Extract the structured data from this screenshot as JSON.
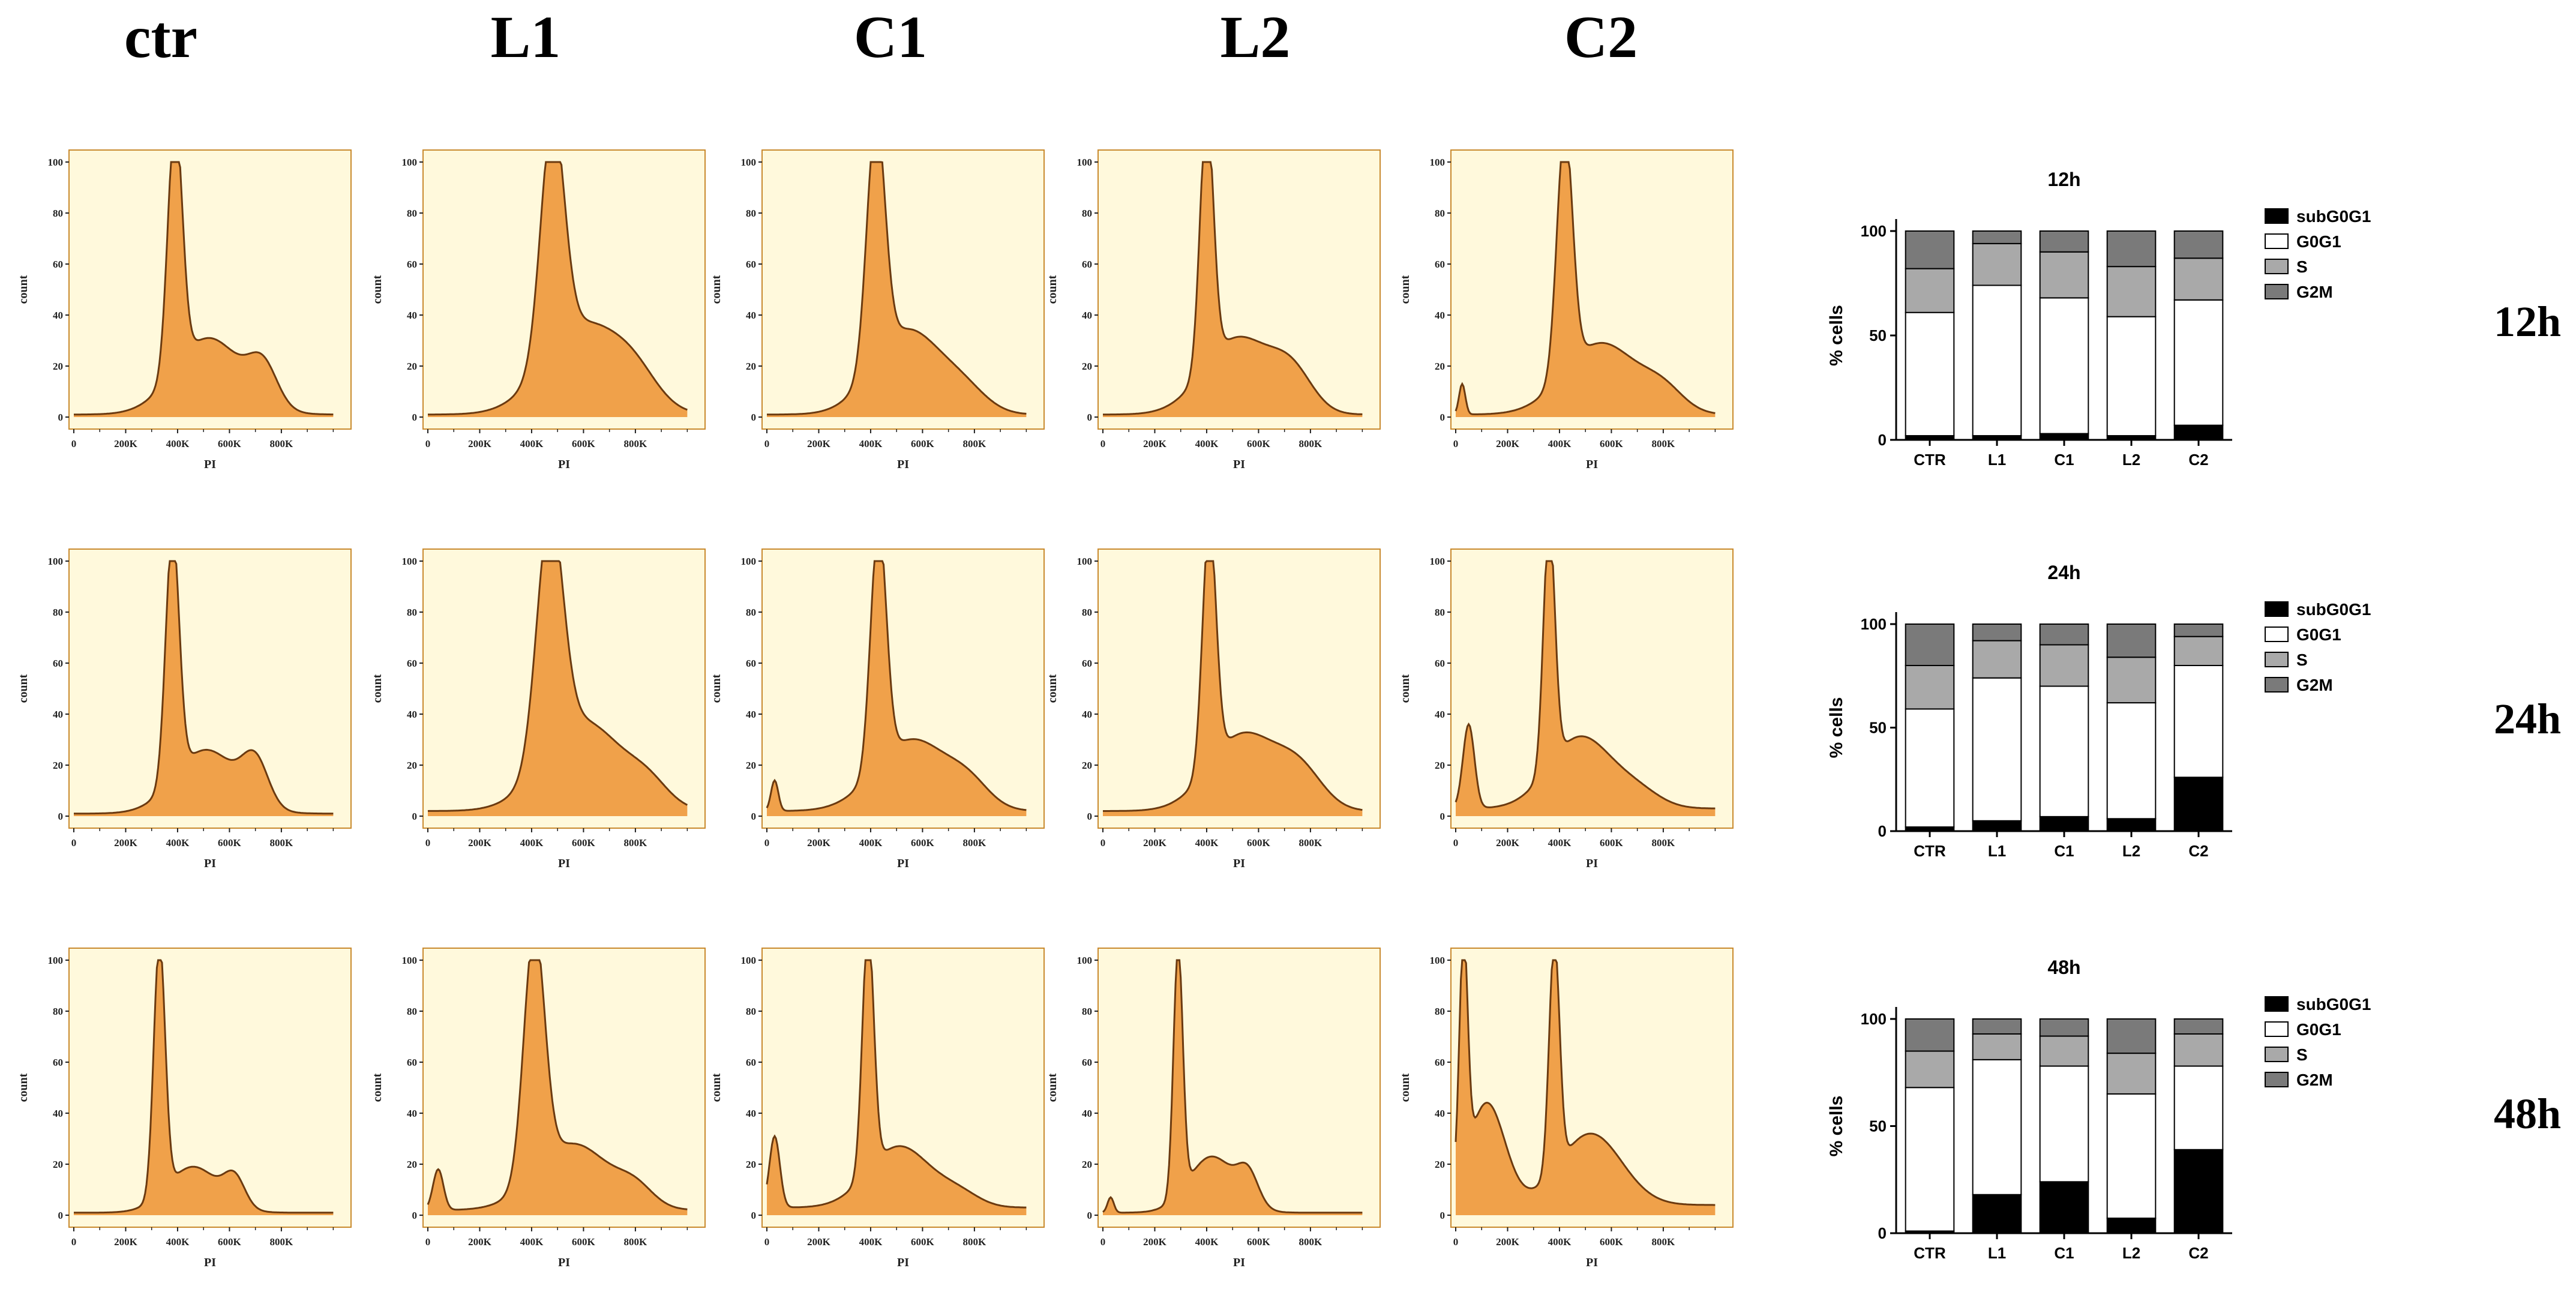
{
  "colors": {
    "panel_bg": "#fff9dc",
    "panel_border": "#c98a2e",
    "hist_fill": "#f0a14a",
    "hist_line": "#6b3a10",
    "subG0G1": "#000000",
    "G0G1": "#ffffff",
    "S": "#a9a9a9",
    "G2M": "#7a7a7a"
  },
  "columns": [
    "ctr",
    "L1",
    "C1",
    "L2",
    "C2"
  ],
  "rows": [
    {
      "label": "12h"
    },
    {
      "label": "24h"
    },
    {
      "label": "48h"
    }
  ],
  "histogram_axes": {
    "xlabel": "PI",
    "ylabel": "count",
    "x_ticks": [
      "0",
      "200K",
      "400K",
      "600K",
      "800K"
    ],
    "y_ticks": [
      "0",
      "20",
      "40",
      "60",
      "80",
      "100"
    ]
  },
  "histograms": [
    [
      {
        "peaks": [
          [
            390,
            98,
            28
          ],
          [
            520,
            30,
            130
          ],
          [
            730,
            15,
            55
          ]
        ],
        "sub": 0,
        "base": 1
      },
      {
        "peaks": [
          [
            480,
            92,
            45
          ],
          [
            600,
            35,
            150
          ],
          [
            800,
            10,
            90
          ]
        ],
        "sub": 0,
        "base": 1
      },
      {
        "peaks": [
          [
            420,
            95,
            35
          ],
          [
            540,
            33,
            130
          ],
          [
            760,
            8,
            90
          ]
        ],
        "sub": 0,
        "base": 1
      },
      {
        "peaks": [
          [
            400,
            99,
            26
          ],
          [
            520,
            30,
            130
          ],
          [
            730,
            14,
            80
          ]
        ],
        "sub": 0,
        "base": 1
      },
      {
        "peaks": [
          [
            25,
            12,
            12
          ],
          [
            420,
            96,
            30
          ],
          [
            560,
            28,
            140
          ],
          [
            800,
            8,
            80
          ]
        ],
        "sub": 12,
        "base": 1
      }
    ],
    [
      {
        "peaks": [
          [
            380,
            97,
            26
          ],
          [
            510,
            25,
            120
          ],
          [
            700,
            17,
            50
          ]
        ],
        "sub": 0,
        "base": 1
      },
      {
        "peaks": [
          [
            470,
            94,
            50
          ],
          [
            600,
            35,
            150
          ],
          [
            850,
            8,
            80
          ]
        ],
        "sub": 4,
        "base": 2
      },
      {
        "peaks": [
          [
            30,
            12,
            14
          ],
          [
            430,
            95,
            30
          ],
          [
            560,
            28,
            140
          ],
          [
            780,
            8,
            80
          ]
        ],
        "sub": 12,
        "base": 2
      },
      {
        "peaks": [
          [
            410,
            96,
            26
          ],
          [
            540,
            30,
            130
          ],
          [
            760,
            14,
            90
          ]
        ],
        "sub": 3,
        "base": 2
      },
      {
        "peaks": [
          [
            50,
            33,
            22
          ],
          [
            360,
            96,
            22
          ],
          [
            480,
            28,
            120
          ],
          [
            700,
            6,
            90
          ]
        ],
        "sub": 33,
        "base": 3
      }
    ],
    [
      {
        "peaks": [
          [
            330,
            99,
            22
          ],
          [
            460,
            18,
            100
          ],
          [
            620,
            11,
            40
          ]
        ],
        "sub": 0,
        "base": 1
      },
      {
        "peaks": [
          [
            40,
            16,
            20
          ],
          [
            410,
            96,
            40
          ],
          [
            560,
            26,
            140
          ],
          [
            800,
            7,
            70
          ]
        ],
        "sub": 16,
        "base": 2
      },
      {
        "peaks": [
          [
            30,
            28,
            20
          ],
          [
            390,
            96,
            22
          ],
          [
            510,
            24,
            120
          ],
          [
            740,
            5,
            80
          ]
        ],
        "sub": 28,
        "base": 3
      },
      {
        "peaks": [
          [
            30,
            6,
            12
          ],
          [
            290,
            97,
            18
          ],
          [
            420,
            22,
            90
          ],
          [
            560,
            12,
            40
          ]
        ],
        "sub": 6,
        "base": 1
      },
      {
        "peaks": [
          [
            30,
            90,
            16
          ],
          [
            120,
            40,
            70
          ],
          [
            380,
            90,
            20
          ],
          [
            520,
            28,
            120
          ]
        ],
        "sub": 90,
        "base": 4
      }
    ]
  ],
  "chart_data": [
    {
      "type": "bar",
      "title": "12h",
      "stacked": true,
      "categories": [
        "CTR",
        "L1",
        "C1",
        "L2",
        "C2"
      ],
      "ylabel": "% cells",
      "ylim": [
        0,
        100
      ],
      "yticks": [
        "0",
        "50",
        "100"
      ],
      "series": [
        {
          "name": "subG0G1",
          "values": [
            2,
            2,
            3,
            2,
            7
          ]
        },
        {
          "name": "G0G1",
          "values": [
            59,
            72,
            65,
            57,
            60
          ]
        },
        {
          "name": "S",
          "values": [
            21,
            20,
            22,
            24,
            20
          ]
        },
        {
          "name": "G2M",
          "values": [
            18,
            6,
            10,
            17,
            13
          ]
        }
      ]
    },
    {
      "type": "bar",
      "title": "24h",
      "stacked": true,
      "categories": [
        "CTR",
        "L1",
        "C1",
        "L2",
        "C2"
      ],
      "ylabel": "% cells",
      "ylim": [
        0,
        100
      ],
      "yticks": [
        "0",
        "50",
        "100"
      ],
      "series": [
        {
          "name": "subG0G1",
          "values": [
            2,
            5,
            7,
            6,
            26
          ]
        },
        {
          "name": "G0G1",
          "values": [
            57,
            69,
            63,
            56,
            54
          ]
        },
        {
          "name": "S",
          "values": [
            21,
            18,
            20,
            22,
            14
          ]
        },
        {
          "name": "G2M",
          "values": [
            20,
            8,
            10,
            16,
            6
          ]
        }
      ]
    },
    {
      "type": "bar",
      "title": "48h",
      "stacked": true,
      "categories": [
        "CTR",
        "L1",
        "C1",
        "L2",
        "C2"
      ],
      "ylabel": "% cells",
      "ylim": [
        0,
        100
      ],
      "yticks": [
        "0",
        "50",
        "100"
      ],
      "series": [
        {
          "name": "subG0G1",
          "values": [
            1,
            18,
            24,
            7,
            39
          ]
        },
        {
          "name": "G0G1",
          "values": [
            67,
            63,
            54,
            58,
            39
          ]
        },
        {
          "name": "S",
          "values": [
            17,
            12,
            14,
            19,
            15
          ]
        },
        {
          "name": "G2M",
          "values": [
            15,
            7,
            8,
            16,
            7
          ]
        }
      ]
    }
  ]
}
